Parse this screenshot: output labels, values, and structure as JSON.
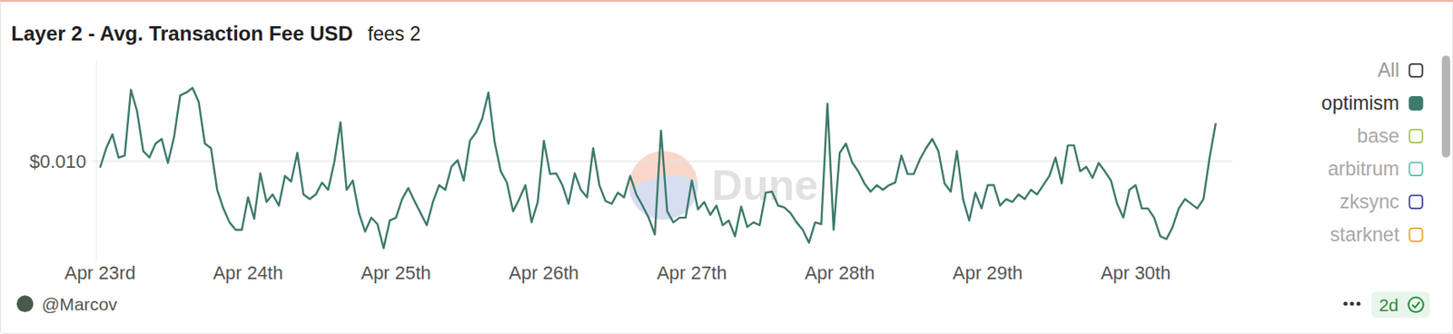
{
  "chart_data": {
    "type": "line",
    "title": "Layer 2 - Avg. Transaction Fee USD",
    "subtitle": "fees 2",
    "author": "@Marcov",
    "refresh": "2d",
    "watermark": "Dune",
    "legend_all": "All",
    "legend": "top-right",
    "grid": true,
    "ylim": [
      0.005,
      0.015
    ],
    "yticks": [
      {
        "value": 0.01,
        "label": "$0.010"
      }
    ],
    "categories": [
      "Apr 23rd",
      null,
      null,
      null,
      null,
      null,
      null,
      null,
      null,
      null,
      null,
      null,
      null,
      null,
      null,
      null,
      null,
      null,
      null,
      null,
      null,
      null,
      null,
      null,
      "Apr 24th",
      null,
      null,
      null,
      null,
      null,
      null,
      null,
      null,
      null,
      null,
      null,
      null,
      null,
      null,
      null,
      null,
      null,
      null,
      null,
      null,
      null,
      null,
      null,
      "Apr 25th",
      null,
      null,
      null,
      null,
      null,
      null,
      null,
      null,
      null,
      null,
      null,
      null,
      null,
      null,
      null,
      null,
      null,
      null,
      null,
      null,
      null,
      null,
      null,
      "Apr 26th",
      null,
      null,
      null,
      null,
      null,
      null,
      null,
      null,
      null,
      null,
      null,
      null,
      null,
      null,
      null,
      null,
      null,
      null,
      null,
      null,
      null,
      null,
      null,
      "Apr 27th",
      null,
      null,
      null,
      null,
      null,
      null,
      null,
      null,
      null,
      null,
      null,
      null,
      null,
      null,
      null,
      null,
      null,
      null,
      null,
      null,
      null,
      null,
      null,
      "Apr 28th",
      null,
      null,
      null,
      null,
      null,
      null,
      null,
      null,
      null,
      null,
      null,
      null,
      null,
      null,
      null,
      null,
      null,
      null,
      null,
      null,
      null,
      null,
      null,
      "Apr 29th",
      null,
      null,
      null,
      null,
      null,
      null,
      null,
      null,
      null,
      null,
      null,
      null,
      null,
      null,
      null,
      null,
      null,
      null,
      null,
      null,
      null,
      null,
      null,
      "Apr 30th",
      null,
      null,
      null,
      null,
      null,
      null,
      null,
      null,
      null,
      null,
      null,
      null,
      null
    ],
    "series": [
      {
        "name": "optimism",
        "color": "#3d7a6b",
        "values": [
          0.00968,
          0.01064,
          0.01133,
          0.01018,
          0.01028,
          0.01353,
          0.01248,
          0.0105,
          0.01018,
          0.01087,
          0.0111,
          0.00991,
          0.01119,
          0.01326,
          0.0134,
          0.01363,
          0.01294,
          0.01087,
          0.01064,
          0.00858,
          0.00766,
          0.00697,
          0.0066,
          0.0066,
          0.00821,
          0.00715,
          0.0094,
          0.00798,
          0.00835,
          0.0078,
          0.00927,
          0.00899,
          0.01041,
          0.00835,
          0.00812,
          0.00835,
          0.00894,
          0.00858,
          0.00995,
          0.01193,
          0.00858,
          0.00904,
          0.00743,
          0.00651,
          0.0072,
          0.00688,
          0.00569,
          0.00706,
          0.0072,
          0.00812,
          0.00867,
          0.00803,
          0.00743,
          0.00683,
          0.00798,
          0.00881,
          0.00858,
          0.00972,
          0.01005,
          0.00904,
          0.01101,
          0.01142,
          0.01211,
          0.0134,
          0.01096,
          0.0095,
          0.00894,
          0.00752,
          0.00812,
          0.00881,
          0.00697,
          0.00798,
          0.01101,
          0.00936,
          0.0094,
          0.00881,
          0.00789,
          0.0094,
          0.00858,
          0.00821,
          0.01064,
          0.00881,
          0.00803,
          0.00789,
          0.00844,
          0.00821,
          0.00927,
          0.00835,
          0.0078,
          0.0072,
          0.00637,
          0.01151,
          0.00752,
          0.00697,
          0.0072,
          0.0072,
          0.00904,
          0.00761,
          0.00798,
          0.00734,
          0.0078,
          0.00683,
          0.00706,
          0.00628,
          0.00775,
          0.00674,
          0.00697,
          0.00683,
          0.00844,
          0.00849,
          0.0078,
          0.00771,
          0.00743,
          0.00697,
          0.0066,
          0.00596,
          0.00697,
          0.00688,
          0.01285,
          0.0066,
          0.01041,
          0.01087,
          0.00995,
          0.0095,
          0.0089,
          0.00849,
          0.00881,
          0.00858,
          0.00881,
          0.00894,
          0.01028,
          0.00936,
          0.00936,
          0.01009,
          0.01064,
          0.0111,
          0.0105,
          0.0089,
          0.00849,
          0.0105,
          0.00812,
          0.00706,
          0.00844,
          0.00766,
          0.00881,
          0.00881,
          0.0078,
          0.00812,
          0.00798,
          0.00835,
          0.00812,
          0.00858,
          0.00835,
          0.00881,
          0.00927,
          0.01018,
          0.0089,
          0.01078,
          0.01078,
          0.0095,
          0.00972,
          0.00917,
          0.00991,
          0.0095,
          0.00904,
          0.00789,
          0.0072,
          0.00858,
          0.00881,
          0.00766,
          0.00766,
          0.0072,
          0.00628,
          0.00614,
          0.00674,
          0.00766,
          0.00812,
          0.00789,
          0.00766,
          0.00812,
          0.01018,
          0.01188
        ]
      }
    ],
    "inactive_series": [
      {
        "name": "base",
        "color": "#a3c44a"
      },
      {
        "name": "arbitrum",
        "color": "#5cc2a8"
      },
      {
        "name": "zksync",
        "color": "#3f3f9e"
      },
      {
        "name": "starknet",
        "color": "#e3ab22"
      }
    ]
  }
}
